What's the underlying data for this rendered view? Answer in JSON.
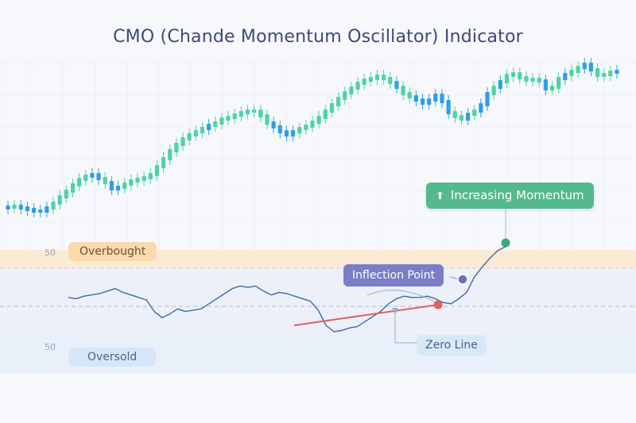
{
  "title": "CMO (Chande Momentum Oscillator) Indicator",
  "labels": {
    "overbought": "Overbought",
    "oversold": "Oversold",
    "inflection": "Inflection Point",
    "zero_line": "Zero Line",
    "momentum": "Increasing Momentum"
  },
  "icons": {
    "momentum": "up-arrow-icon"
  },
  "colors": {
    "bull": "#4fd3a2",
    "bear": "#2f9ee8",
    "cmo_line": "#3d6aa8",
    "trend_line": "#e0605e",
    "overbought_band": "#fbe8cf",
    "oversold_band": "#e7eefa",
    "momentum_dot": "#3aa876",
    "inflection_dot": "#6a6fc4"
  },
  "chart_data": [
    {
      "type": "candlestick",
      "title": "",
      "series": [
        {
          "name": "",
          "up": [
            0,
            1,
            0,
            0,
            0,
            0,
            0,
            1,
            1,
            1,
            1,
            1,
            1,
            0,
            0,
            1,
            0,
            0,
            1,
            1,
            1,
            1,
            1,
            1,
            1,
            1,
            1,
            1,
            1,
            1,
            1,
            0,
            1,
            1,
            1,
            1,
            1,
            1,
            1,
            1,
            1,
            0,
            0,
            0,
            0,
            1,
            1,
            1,
            1,
            1,
            1,
            1,
            1,
            1,
            1,
            1,
            1,
            1,
            1,
            1,
            0,
            1,
            1,
            0,
            0,
            0,
            0,
            0,
            0,
            1,
            1,
            0,
            1,
            0,
            0,
            1,
            0,
            1,
            1,
            1,
            1,
            1,
            1,
            0,
            1,
            1,
            0,
            1,
            1,
            0,
            0,
            1,
            1,
            1,
            0
          ],
          "close": [
            261,
            260,
            262,
            264,
            266,
            266,
            262,
            256,
            248,
            241,
            233,
            226,
            222,
            220,
            225,
            230,
            238,
            236,
            232,
            228,
            226,
            224,
            220,
            210,
            200,
            190,
            182,
            175,
            170,
            166,
            162,
            158,
            155,
            150,
            148,
            145,
            142,
            140,
            140,
            146,
            155,
            160,
            166,
            170,
            166,
            162,
            159,
            154,
            148,
            140,
            132,
            124,
            117,
            111,
            105,
            101,
            99,
            96,
            99,
            104,
            110,
            118,
            122,
            126,
            130,
            126,
            120,
            128,
            142,
            147,
            150,
            144,
            140,
            132,
            118,
            110,
            103,
            95,
            93,
            98,
            101,
            100,
            102,
            112,
            110,
            99,
            94,
            90,
            85,
            81,
            88,
            95,
            94,
            91,
            90
          ]
        }
      ]
    },
    {
      "type": "line",
      "title": "",
      "yticks": [
        "50",
        "50"
      ],
      "series": [
        {
          "name": "",
          "values": [
            7,
            6,
            8,
            9,
            10,
            12,
            14,
            11,
            9,
            7,
            5,
            -4,
            -9,
            -6,
            -2,
            -4,
            -3,
            -2,
            2,
            6,
            10,
            14,
            16,
            15,
            16,
            12,
            9,
            11,
            10,
            8,
            6,
            4,
            -3,
            -15,
            -20,
            -19,
            -17,
            -16,
            -12,
            -8,
            -4,
            2,
            6,
            8,
            7,
            7,
            8,
            6,
            3,
            2,
            6,
            11,
            23,
            31,
            38,
            44,
            47
          ]
        }
      ],
      "annotations": [
        "Overbought",
        "Oversold",
        "Inflection Point",
        "Zero Line",
        "Increasing Momentum"
      ]
    }
  ]
}
